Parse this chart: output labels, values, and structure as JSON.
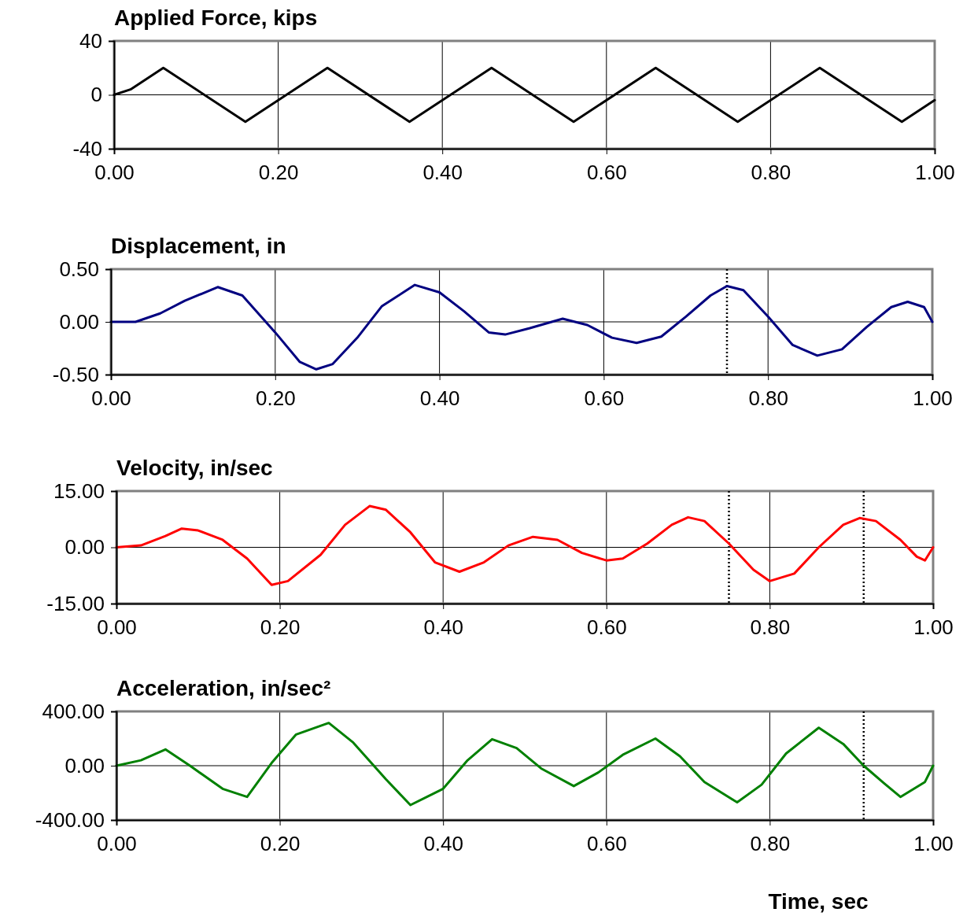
{
  "chart_data": [
    {
      "type": "line",
      "title": "Applied Force, kips",
      "x": [
        0,
        0.02,
        0.04,
        0.06,
        0.16,
        0.26,
        0.36,
        0.46,
        0.56,
        0.66,
        0.76,
        0.86,
        0.96,
        1.0
      ],
      "series": [
        {
          "color": "#000000",
          "values": [
            0,
            4,
            12,
            20,
            -20,
            20,
            -20,
            20,
            -20,
            20,
            -20,
            20,
            -20,
            -4
          ]
        }
      ],
      "xlim": [
        0,
        1
      ],
      "xticks": [
        {
          "value": 0,
          "label": "0.00"
        },
        {
          "value": 0.2,
          "label": "0.20"
        },
        {
          "value": 0.4,
          "label": "0.40"
        },
        {
          "value": 0.6,
          "label": "0.60"
        },
        {
          "value": 0.8,
          "label": "0.80"
        },
        {
          "value": 1,
          "label": "1.00"
        }
      ],
      "ylim": [
        -40,
        40
      ],
      "yticks": [
        -40,
        0,
        40
      ],
      "grid": true,
      "legend": false,
      "marker": "none",
      "line_style": "solid"
    },
    {
      "type": "line",
      "title": "Displacement, in",
      "x": [
        0,
        0.03,
        0.06,
        0.09,
        0.13,
        0.16,
        0.2,
        0.23,
        0.25,
        0.27,
        0.3,
        0.33,
        0.37,
        0.4,
        0.43,
        0.46,
        0.48,
        0.51,
        0.55,
        0.58,
        0.61,
        0.64,
        0.67,
        0.7,
        0.73,
        0.75,
        0.77,
        0.8,
        0.83,
        0.86,
        0.89,
        0.92,
        0.95,
        0.97,
        0.99,
        1.0
      ],
      "series": [
        {
          "color": "#000080",
          "values": [
            0,
            0.0,
            0.08,
            0.2,
            0.33,
            0.25,
            -0.1,
            -0.38,
            -0.45,
            -0.4,
            -0.15,
            0.15,
            0.35,
            0.28,
            0.1,
            -0.1,
            -0.12,
            -0.06,
            0.03,
            -0.03,
            -0.15,
            -0.2,
            -0.14,
            0.05,
            0.25,
            0.34,
            0.3,
            0.05,
            -0.22,
            -0.32,
            -0.26,
            -0.05,
            0.14,
            0.19,
            0.14,
            0
          ]
        }
      ],
      "xlim": [
        0,
        1
      ],
      "xticks": [
        {
          "value": 0,
          "label": "0.00"
        },
        {
          "value": 0.2,
          "label": "0.20"
        },
        {
          "value": 0.4,
          "label": "0.40"
        },
        {
          "value": 0.6,
          "label": "0.60"
        },
        {
          "value": 0.8,
          "label": "0.80"
        },
        {
          "value": 1,
          "label": "1.00"
        }
      ],
      "ylim": [
        -0.5,
        0.5
      ],
      "yticks": [
        {
          "value": -0.5,
          "label": "-0.50"
        },
        {
          "value": 0,
          "label": "0.00"
        },
        {
          "value": 0.5,
          "label": "0.50"
        }
      ],
      "grid": true,
      "legend": false,
      "marker": "none",
      "line_style": "solid",
      "ref_lines": [
        {
          "axis": "x",
          "value": 0.75,
          "line_style": "dotted",
          "color": "#000000"
        }
      ]
    },
    {
      "type": "line",
      "title": "Velocity, in/sec",
      "x": [
        0,
        0.03,
        0.06,
        0.08,
        0.1,
        0.13,
        0.16,
        0.19,
        0.21,
        0.25,
        0.28,
        0.31,
        0.33,
        0.36,
        0.39,
        0.42,
        0.45,
        0.48,
        0.51,
        0.54,
        0.57,
        0.6,
        0.62,
        0.65,
        0.68,
        0.7,
        0.72,
        0.75,
        0.78,
        0.8,
        0.83,
        0.86,
        0.89,
        0.91,
        0.93,
        0.96,
        0.98,
        0.99,
        1.0
      ],
      "series": [
        {
          "color": "#ff0000",
          "values": [
            0,
            0.5,
            3,
            5,
            4.5,
            2,
            -3,
            -10,
            -9,
            -2,
            6,
            11,
            10,
            4,
            -4,
            -6.5,
            -4,
            0.5,
            2.8,
            2,
            -1.5,
            -3.5,
            -3,
            1,
            6,
            8,
            7,
            1,
            -6,
            -9,
            -7,
            0,
            6,
            7.8,
            7,
            2,
            -2.5,
            -3.5,
            0
          ]
        }
      ],
      "xlim": [
        0,
        1
      ],
      "xticks": [
        {
          "value": 0,
          "label": "0.00"
        },
        {
          "value": 0.2,
          "label": "0.20"
        },
        {
          "value": 0.4,
          "label": "0.40"
        },
        {
          "value": 0.6,
          "label": "0.60"
        },
        {
          "value": 0.8,
          "label": "0.80"
        },
        {
          "value": 1,
          "label": "1.00"
        }
      ],
      "ylim": [
        -15,
        15
      ],
      "yticks": [
        {
          "value": -15,
          "label": "-15.00"
        },
        {
          "value": 0,
          "label": "0.00"
        },
        {
          "value": 15,
          "label": "15.00"
        }
      ],
      "grid": true,
      "legend": false,
      "marker": "none",
      "line_style": "solid",
      "ref_lines": [
        {
          "axis": "x",
          "value": 0.75,
          "line_style": "dotted",
          "color": "#000000"
        },
        {
          "axis": "x",
          "value": 0.915,
          "line_style": "dotted",
          "color": "#000000"
        }
      ]
    },
    {
      "type": "line",
      "title": "Acceleration, in/sec²",
      "xlabel": "Time, sec",
      "x": [
        0,
        0.03,
        0.06,
        0.09,
        0.13,
        0.16,
        0.19,
        0.22,
        0.26,
        0.29,
        0.33,
        0.36,
        0.4,
        0.43,
        0.46,
        0.49,
        0.52,
        0.56,
        0.59,
        0.62,
        0.66,
        0.69,
        0.72,
        0.76,
        0.79,
        0.82,
        0.86,
        0.89,
        0.915,
        0.94,
        0.96,
        0.99,
        1.0
      ],
      "series": [
        {
          "color": "#008000",
          "values": [
            0,
            40,
            120,
            0,
            -170,
            -230,
            20,
            230,
            315,
            170,
            -100,
            -290,
            -170,
            40,
            195,
            130,
            -20,
            -150,
            -50,
            80,
            200,
            70,
            -120,
            -270,
            -140,
            90,
            280,
            160,
            0,
            -130,
            -230,
            -120,
            0
          ]
        }
      ],
      "xlim": [
        0,
        1
      ],
      "xticks": [
        {
          "value": 0,
          "label": "0.00"
        },
        {
          "value": 0.2,
          "label": "0.20"
        },
        {
          "value": 0.4,
          "label": "0.40"
        },
        {
          "value": 0.6,
          "label": "0.60"
        },
        {
          "value": 0.8,
          "label": "0.80"
        },
        {
          "value": 1,
          "label": "1.00"
        }
      ],
      "ylim": [
        -400,
        400
      ],
      "yticks": [
        {
          "value": -400,
          "label": "-400.00"
        },
        {
          "value": 0,
          "label": "0.00"
        },
        {
          "value": 400,
          "label": "400.00"
        }
      ],
      "grid": true,
      "legend": false,
      "marker": "none",
      "line_style": "solid",
      "ref_lines": [
        {
          "axis": "x",
          "value": 0.915,
          "line_style": "dotted",
          "color": "#000000"
        }
      ]
    }
  ]
}
